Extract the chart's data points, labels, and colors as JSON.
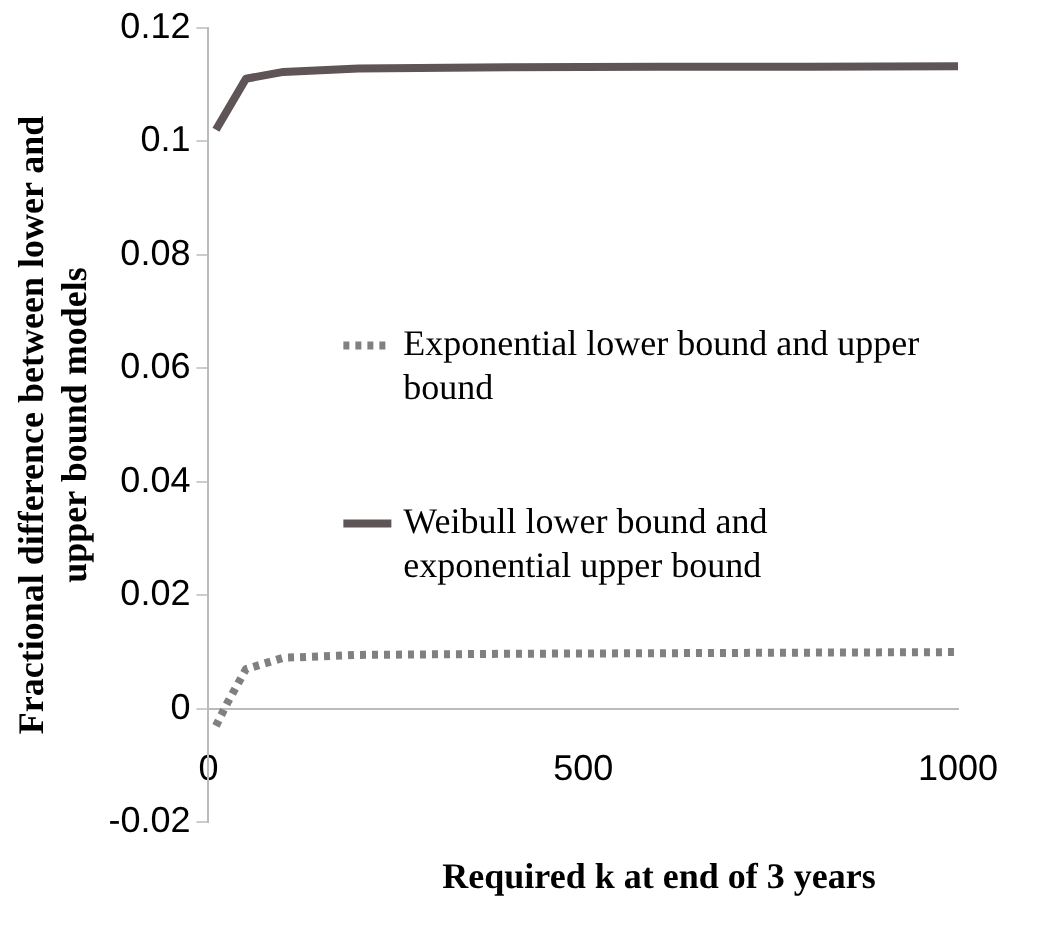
{
  "chart_data": {
    "type": "line",
    "xlabel": "Required k at end of 3 years",
    "ylabel": "Fractional difference between lower and upper bound models",
    "xlim": [
      0,
      1000
    ],
    "xticks": [
      0,
      500,
      1000
    ],
    "ylim": [
      -0.02,
      0.12
    ],
    "yticks": [
      -0.02,
      0,
      0.02,
      0.04,
      0.06,
      0.08,
      0.1,
      0.12
    ],
    "grid": false,
    "legend": "right",
    "marker": "none",
    "series": [
      {
        "name": "Exponential lower bound and upper bound",
        "color": "#808080",
        "line_style": "dotted",
        "x": [
          10,
          25,
          50,
          100,
          200,
          400,
          600,
          800,
          1000
        ],
        "values": [
          -0.003,
          0.001,
          0.007,
          0.009,
          0.0095,
          0.0097,
          0.0098,
          0.0099,
          0.01
        ]
      },
      {
        "name": "Weibull lower bound and exponential upper bound",
        "color": "#5f5557",
        "line_style": "solid",
        "x": [
          10,
          50,
          100,
          200,
          400,
          600,
          800,
          1000
        ],
        "values": [
          0.102,
          0.111,
          0.1122,
          0.1128,
          0.113,
          0.1131,
          0.1131,
          0.1132
        ]
      }
    ]
  }
}
